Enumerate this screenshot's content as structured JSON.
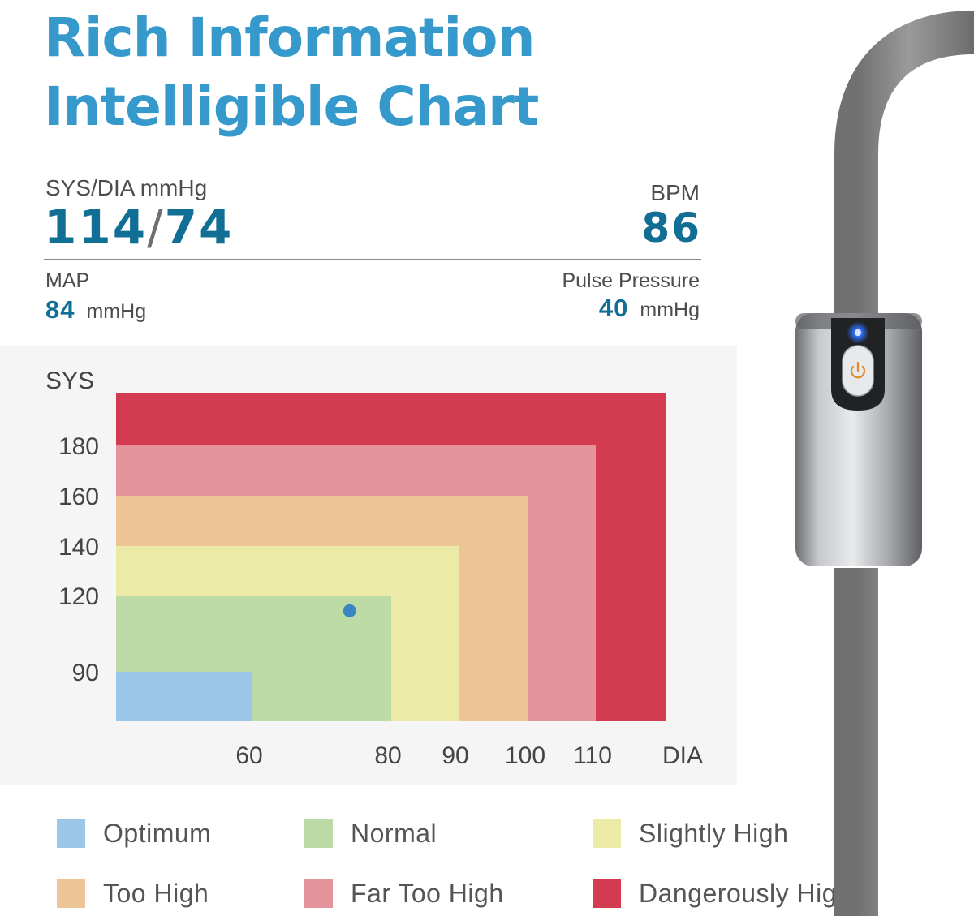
{
  "headline": {
    "line1": "Rich Information",
    "line2": "Intelligible Chart"
  },
  "readings": {
    "sysdia_label": "SYS/DIA mmHg",
    "sys": "114",
    "slash": "/",
    "dia": "74",
    "bpm_label": "BPM",
    "bpm": "86",
    "map_label": "MAP",
    "map_value": "84",
    "map_unit": "mmHg",
    "pp_label": "Pulse Pressure",
    "pp_value": "40",
    "pp_unit": "mmHg"
  },
  "chart_data": {
    "type": "heatmap",
    "xlabel": "DIA",
    "ylabel": "SYS",
    "x_ticks": [
      60,
      80,
      90,
      100,
      110
    ],
    "y_ticks": [
      90,
      120,
      140,
      160,
      180
    ],
    "zones": [
      {
        "name": "Dangerously High",
        "color": "#d33b50",
        "dia_max": null,
        "sys_max": null
      },
      {
        "name": "Far Too High",
        "color": "#e5939a",
        "dia_max": 110,
        "sys_max": 180
      },
      {
        "name": "Too High",
        "color": "#eec597",
        "dia_max": 100,
        "sys_max": 160
      },
      {
        "name": "Slightly High",
        "color": "#ebeaa6",
        "dia_max": 90,
        "sys_max": 140
      },
      {
        "name": "Normal",
        "color": "#bddba6",
        "dia_max": 80,
        "sys_max": 120
      },
      {
        "name": "Optimum",
        "color": "#9dc7e8",
        "dia_max": 60,
        "sys_max": 90
      }
    ],
    "point": {
      "dia": 74,
      "sys": 114,
      "color": "#3c85c4"
    }
  },
  "legend": [
    {
      "label": "Optimum",
      "color": "#9dc7e8"
    },
    {
      "label": "Normal",
      "color": "#bddba6"
    },
    {
      "label": "Slightly High",
      "color": "#ebeaa6"
    },
    {
      "label": "Too High",
      "color": "#eec597"
    },
    {
      "label": "Far Too High",
      "color": "#e5939a"
    },
    {
      "label": "Dangerously High",
      "color": "#d33b50"
    }
  ],
  "device": {
    "tube_color": "#8a8a8a",
    "body_color": "#a7a9ad",
    "led_color": "#2f6cf5",
    "icon": "power-icon",
    "icon_color": "#e58a2b"
  }
}
